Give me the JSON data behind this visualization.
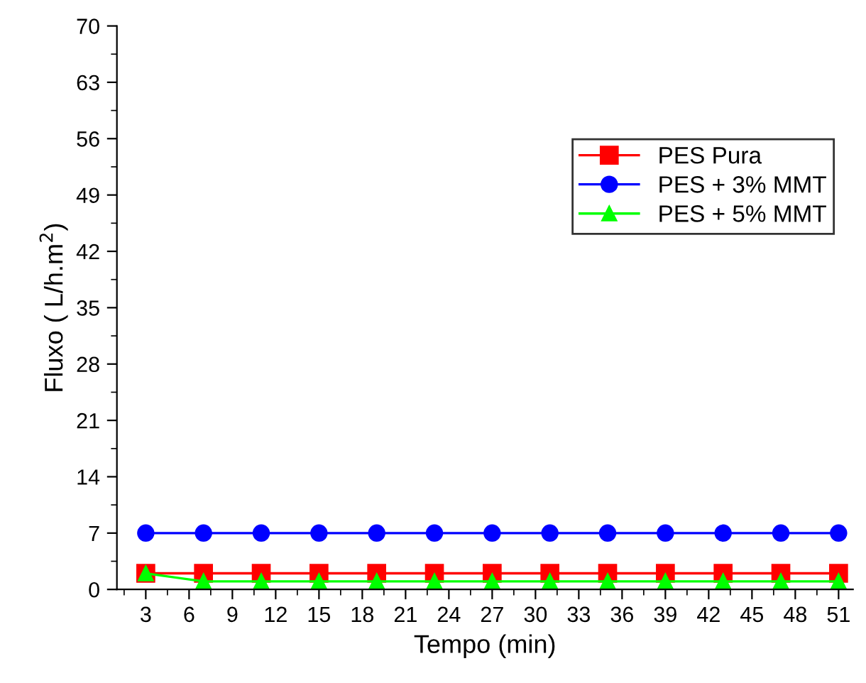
{
  "chart_data": {
    "type": "line",
    "xlabel": "Tempo (min)",
    "ylabel": "Fluxo ( L/h.m$^{2}$)",
    "x": [
      3,
      7,
      11,
      15,
      19,
      23,
      27,
      31,
      35,
      39,
      43,
      47,
      51
    ],
    "series": [
      {
        "name": "PES Pura",
        "color": "#ff0000",
        "marker": "square",
        "values": [
          2,
          2,
          2,
          2,
          2,
          2,
          2,
          2,
          2,
          2,
          2,
          2,
          2
        ]
      },
      {
        "name": "PES + 3% MMT",
        "color": "#0000ff",
        "marker": "circle",
        "values": [
          7,
          7,
          7,
          7,
          7,
          7,
          7,
          7,
          7,
          7,
          7,
          7,
          7
        ]
      },
      {
        "name": "PES + 5% MMT",
        "color": "#00ff00",
        "marker": "triangle",
        "values": [
          2,
          1,
          1,
          1,
          1,
          1,
          1,
          1,
          1,
          1,
          1,
          1,
          1
        ]
      }
    ],
    "xlim": [
      1,
      52
    ],
    "ylim": [
      0,
      70
    ],
    "xticks": [
      3,
      6,
      9,
      12,
      15,
      18,
      21,
      24,
      27,
      30,
      33,
      36,
      39,
      42,
      45,
      48,
      51
    ],
    "yticks": [
      0,
      7,
      14,
      21,
      28,
      35,
      42,
      49,
      56,
      63,
      70
    ],
    "grid": false,
    "legend": "top right",
    "line_style": "solid"
  }
}
